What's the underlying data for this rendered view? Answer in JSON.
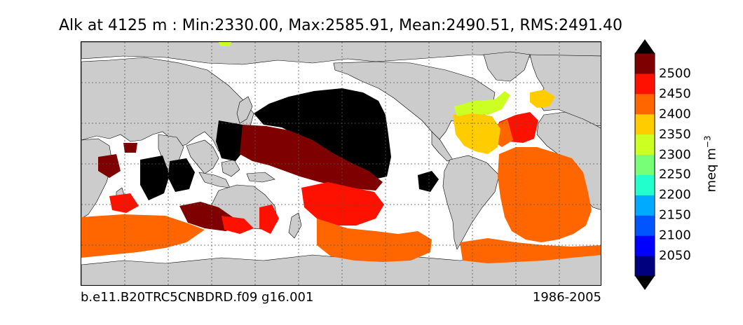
{
  "title": "Alk at 4125 m : Min:2330.00, Max:2585.91, Mean:2490.51, RMS:2491.40",
  "footer": {
    "case_name": "b.e11.B20TRC5CNBDRD.f09 g16.001",
    "period": "1986-2005"
  },
  "colorbar": {
    "units_base": "meq m",
    "units_exp": "−3",
    "ticks": [
      "2050",
      "2100",
      "2150",
      "2200",
      "2250",
      "2300",
      "2350",
      "2400",
      "2450",
      "2500"
    ],
    "bins": [
      {
        "range": [
          2000,
          2050
        ],
        "color": "#00007f"
      },
      {
        "range": [
          2050,
          2100
        ],
        "color": "#0000ff"
      },
      {
        "range": [
          2100,
          2150
        ],
        "color": "#0055ff"
      },
      {
        "range": [
          2150,
          2200
        ],
        "color": "#00aaff"
      },
      {
        "range": [
          2200,
          2250
        ],
        "color": "#22ffcc"
      },
      {
        "range": [
          2250,
          2300
        ],
        "color": "#77ff77"
      },
      {
        "range": [
          2300,
          2350
        ],
        "color": "#ccff22"
      },
      {
        "range": [
          2350,
          2400
        ],
        "color": "#ffcc00"
      },
      {
        "range": [
          2400,
          2450
        ],
        "color": "#ff6600"
      },
      {
        "range": [
          2450,
          2500
        ],
        "color": "#ff1100"
      },
      {
        "range": [
          2500,
          2550
        ],
        "color": "#7f0000"
      }
    ],
    "under_color": "#000000",
    "over_color": "#000000"
  },
  "map_colors": {
    "land": "#cccccc",
    "ocean_nodata": "#ffffff",
    "grid": "#555555"
  }
}
